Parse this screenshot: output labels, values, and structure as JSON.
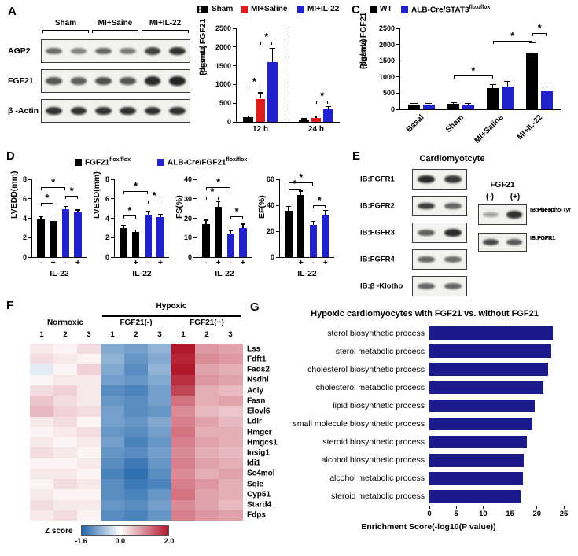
{
  "panels": {
    "A": {
      "label": "A",
      "groups": [
        "Sham",
        "MI+Saine",
        "MI+IL-22"
      ],
      "rows": [
        {
          "label": "AGP2",
          "bands": [
            0.45,
            0.3,
            0.5,
            0.35,
            0.75,
            0.85
          ]
        },
        {
          "label": "FGF21",
          "bands": [
            0.6,
            0.55,
            0.65,
            0.6,
            0.9,
            0.95
          ]
        },
        {
          "label": "β -Actin",
          "bands": [
            0.85,
            0.85,
            0.85,
            0.85,
            0.85,
            0.85
          ]
        }
      ]
    },
    "B": {
      "label": "B",
      "legend": [
        {
          "label": "Sham",
          "sup": "",
          "color": "#000000"
        },
        {
          "label": "MI+Saline",
          "sup": "",
          "color": "#e01b1d"
        },
        {
          "label": "MI+IL-22",
          "sup": "",
          "color": "#2222cc"
        }
      ],
      "ylabel1": "Plasma FGF21",
      "ylabel2": "(pg/mL)"
    },
    "C": {
      "label": "C",
      "legend": [
        {
          "label": "WT",
          "sup": "",
          "color": "#000000"
        },
        {
          "label": "ALB-Cre/STAT3",
          "sup": "flox/flox",
          "color": "#2222cc"
        }
      ],
      "ylabel1": "Plasma FGF21",
      "ylabel2": "(pg/mL)"
    },
    "D": {
      "label": "D",
      "legend": [
        {
          "label": "FGF21",
          "sup": "flox/flox",
          "color": "#000000"
        },
        {
          "label": "ALB-Cre/FGF21",
          "sup": "flox/flox",
          "color": "#2222cc"
        }
      ]
    },
    "E": {
      "label": "E",
      "title": "Cardiomyotcyte",
      "blots": [
        {
          "label": "IB:FGFR1",
          "bands": [
            0.9,
            0.8
          ]
        },
        {
          "label": "IB:FGFR2",
          "bands": [
            0.75,
            0.5
          ]
        },
        {
          "label": "IB:FGFR3",
          "bands": [
            0.55,
            0.9
          ]
        },
        {
          "label": "IB:FGFR4",
          "bands": [
            0.5,
            0.45
          ]
        },
        {
          "label": "IB:β -Klotho",
          "bands": [
            0.5,
            0.5
          ]
        }
      ],
      "right": {
        "header": "FGF21",
        "lanes": [
          "(-)",
          "(+)"
        ],
        "blots": [
          {
            "labels": [
              "IP:FGFR1",
              "IB:Phospho-Tyr"
            ],
            "bands": [
              0.12,
              0.85
            ]
          },
          {
            "labels": [
              "IP:FGFR1",
              "IB:FGFR1"
            ],
            "bands": [
              0.7,
              0.6
            ]
          }
        ]
      }
    },
    "F": {
      "label": "F"
    },
    "G": {
      "label": "G"
    }
  },
  "chart_data": {
    "B": {
      "type": "bar",
      "ylabel": "Plasma FGF21 (pg/mL)",
      "ylim": [
        0,
        2500
      ],
      "yticks": [
        0,
        500,
        1000,
        1500,
        2000,
        2500
      ],
      "series": [
        "Sham",
        "MI+Saline",
        "MI+IL-22"
      ],
      "colors": [
        "#000000",
        "#e01b1d",
        "#2222cc"
      ],
      "groups": [
        {
          "label": "12 h",
          "values": [
            120,
            620,
            1600
          ],
          "errs": [
            40,
            160,
            360
          ]
        },
        {
          "label": "24 h",
          "values": [
            60,
            110,
            340
          ],
          "errs": [
            25,
            45,
            70
          ]
        }
      ],
      "gap": 1.6,
      "divider_center": true,
      "brackets": [
        {
          "a": 0,
          "b": 1,
          "y": 950,
          "label": "*"
        },
        {
          "a": 1,
          "b": 2,
          "y": 2150,
          "label": "*"
        },
        {
          "a": 4,
          "b": 5,
          "y": 560,
          "label": "*"
        }
      ]
    },
    "C": {
      "type": "bar",
      "ylabel": "Plasma FGF21 (pg/mL)",
      "ylim": [
        0,
        2500
      ],
      "yticks": [
        0,
        500,
        1000,
        1500,
        2000,
        2500
      ],
      "series": [
        "WT",
        "ALB-Cre/STAT3flox/flox"
      ],
      "colors": [
        "#000000",
        "#2222cc"
      ],
      "groups": [
        {
          "label": "Basal",
          "values": [
            150,
            140
          ],
          "errs": [
            40,
            40
          ]
        },
        {
          "label": "Sham",
          "values": [
            160,
            150
          ],
          "errs": [
            45,
            40
          ]
        },
        {
          "label": "MI+Saline",
          "values": [
            650,
            700
          ],
          "errs": [
            120,
            160
          ]
        },
        {
          "label": "MI+IL-22",
          "values": [
            1750,
            560
          ],
          "errs": [
            300,
            130
          ]
        }
      ],
      "gap": 0.7,
      "rotate_xlabels": true,
      "brackets": [
        {
          "a": 2,
          "b": 4,
          "y": 1050,
          "label": "*"
        },
        {
          "a": 4,
          "b": 6,
          "y": 2100,
          "label": "*"
        },
        {
          "a": 6,
          "b": 7,
          "y": 2350,
          "label": "*"
        }
      ]
    },
    "D": [
      {
        "type": "bar",
        "ylabel": "LVEDD(mm)",
        "ylim": [
          0,
          8
        ],
        "yticks": [
          0,
          2,
          4,
          6,
          8
        ],
        "groups": [
          {
            "values": [
              3.9
            ],
            "errs": [
              0.25
            ]
          },
          {
            "values": [
              3.7
            ],
            "errs": [
              0.2
            ]
          },
          {
            "values": [
              4.9
            ],
            "errs": [
              0.3
            ]
          },
          {
            "values": [
              4.6
            ],
            "errs": [
              0.25
            ]
          }
        ],
        "gap": 0.35,
        "bar_colors": [
          "#000000",
          "#000000",
          "#2222cc",
          "#2222cc"
        ],
        "bar_labels": [
          "-",
          "+",
          "-",
          "+"
        ],
        "xaxis_title": "IL-22",
        "brackets": [
          {
            "a": 0,
            "b": 1,
            "y": 5.6,
            "label": "*"
          },
          {
            "a": 0,
            "b": 2,
            "y": 7.2,
            "label": "*"
          },
          {
            "a": 2,
            "b": 3,
            "y": 6.3,
            "label": "*"
          }
        ]
      },
      {
        "type": "bar",
        "ylabel": "LVESD(mm)",
        "ylim": [
          0,
          8
        ],
        "yticks": [
          0,
          2,
          4,
          6,
          8
        ],
        "groups": [
          {
            "values": [
              3.0
            ],
            "errs": [
              0.25
            ]
          },
          {
            "values": [
              2.6
            ],
            "errs": [
              0.2
            ]
          },
          {
            "values": [
              4.4
            ],
            "errs": [
              0.3
            ]
          },
          {
            "values": [
              4.1
            ],
            "errs": [
              0.28
            ]
          }
        ],
        "gap": 0.35,
        "bar_colors": [
          "#000000",
          "#000000",
          "#2222cc",
          "#2222cc"
        ],
        "bar_labels": [
          "-",
          "+",
          "-",
          "+"
        ],
        "xaxis_title": "IL-22",
        "brackets": [
          {
            "a": 0,
            "b": 1,
            "y": 4.3,
            "label": "*"
          },
          {
            "a": 0,
            "b": 2,
            "y": 6.8,
            "label": "*"
          },
          {
            "a": 2,
            "b": 3,
            "y": 5.8,
            "label": "*"
          }
        ]
      },
      {
        "type": "bar",
        "ylabel": "FS(%)",
        "ylim": [
          0,
          40
        ],
        "yticks": [
          0,
          10,
          20,
          30,
          40
        ],
        "groups": [
          {
            "values": [
              17
            ],
            "errs": [
              2
            ]
          },
          {
            "values": [
              26
            ],
            "errs": [
              2.5
            ]
          },
          {
            "values": [
              12
            ],
            "errs": [
              1.5
            ]
          },
          {
            "values": [
              15
            ],
            "errs": [
              2
            ]
          }
        ],
        "gap": 0.35,
        "bar_colors": [
          "#000000",
          "#000000",
          "#2222cc",
          "#2222cc"
        ],
        "bar_labels": [
          "-",
          "+",
          "-",
          "+"
        ],
        "xaxis_title": "IL-22",
        "brackets": [
          {
            "a": 0,
            "b": 1,
            "y": 31,
            "label": "*"
          },
          {
            "a": 0,
            "b": 2,
            "y": 36,
            "label": "*"
          },
          {
            "a": 2,
            "b": 3,
            "y": 21,
            "label": "*"
          }
        ]
      },
      {
        "type": "bar",
        "ylabel": "EF(%)",
        "ylim": [
          0,
          60
        ],
        "yticks": [
          0,
          20,
          40,
          60
        ],
        "groups": [
          {
            "values": [
              36
            ],
            "errs": [
              3
            ]
          },
          {
            "values": [
              48
            ],
            "errs": [
              3
            ]
          },
          {
            "values": [
              25
            ],
            "errs": [
              2.5
            ]
          },
          {
            "values": [
              33
            ],
            "errs": [
              3
            ]
          }
        ],
        "gap": 0.35,
        "bar_colors": [
          "#000000",
          "#000000",
          "#2222cc",
          "#2222cc"
        ],
        "bar_labels": [
          "-",
          "+",
          "-",
          "+"
        ],
        "xaxis_title": "IL-22",
        "brackets": [
          {
            "a": 0,
            "b": 1,
            "y": 53,
            "label": "*"
          },
          {
            "a": 0,
            "b": 2,
            "y": 57.5,
            "label": "*"
          },
          {
            "a": 2,
            "b": 3,
            "y": 40,
            "label": "*"
          }
        ]
      }
    ],
    "F": {
      "type": "heatmap",
      "condition_header": "Hypoxic",
      "col_groups": [
        {
          "label": "Normoxic",
          "cols": [
            "1",
            "2",
            "3"
          ]
        },
        {
          "label": "FGF21(-)",
          "cols": [
            "1",
            "2",
            "3"
          ]
        },
        {
          "label": "FGF21(+)",
          "cols": [
            "1",
            "2",
            "3"
          ]
        }
      ],
      "genes": [
        "Lss",
        "Fdft1",
        "Fads2",
        "Nsdhl",
        "Acly",
        "Fasn",
        "Elovl6",
        "Ldlr",
        "Hmgcr",
        "Hmgcs1",
        "Insig1",
        "Idi1",
        "Sc4mol",
        "Sqle",
        "Cyp51",
        "Stard4",
        "Fdps"
      ],
      "values": [
        [
          0.2,
          0.1,
          0.3,
          -0.9,
          -1.0,
          -0.8,
          2.0,
          0.9,
          0.8
        ],
        [
          0.3,
          0.2,
          0.1,
          -0.8,
          -1.1,
          -0.9,
          1.9,
          1.0,
          0.9
        ],
        [
          -0.2,
          0.1,
          0.4,
          -0.9,
          -1.2,
          -0.8,
          2.0,
          0.8,
          0.7
        ],
        [
          0.1,
          0.2,
          0.2,
          -1.0,
          -1.1,
          -0.9,
          1.8,
          0.9,
          0.8
        ],
        [
          0.3,
          0.4,
          0.2,
          -1.2,
          -1.3,
          -1.0,
          1.6,
          0.7,
          0.6
        ],
        [
          0.5,
          0.3,
          0.2,
          -1.1,
          -1.2,
          -1.0,
          1.2,
          0.7,
          0.8
        ],
        [
          0.6,
          0.4,
          0.3,
          -1.0,
          -1.2,
          -1.1,
          1.0,
          0.6,
          0.5
        ],
        [
          0.2,
          0.3,
          0.1,
          -1.0,
          -1.1,
          -0.9,
          1.1,
          0.8,
          0.6
        ],
        [
          0.1,
          0.2,
          0.3,
          -1.1,
          -1.2,
          -1.0,
          1.2,
          0.7,
          0.7
        ],
        [
          0.2,
          0.1,
          0.2,
          -1.0,
          -1.3,
          -1.1,
          1.1,
          0.8,
          0.7
        ],
        [
          0.3,
          0.2,
          0.1,
          -1.1,
          -1.2,
          -1.0,
          1.0,
          0.7,
          0.6
        ],
        [
          0.1,
          0.1,
          0.2,
          -1.2,
          -1.4,
          -1.1,
          1.1,
          0.8,
          0.7
        ],
        [
          0.2,
          0.2,
          0.1,
          -1.3,
          -1.5,
          -1.2,
          1.0,
          0.7,
          0.8
        ],
        [
          0.1,
          0.3,
          0.2,
          -1.2,
          -1.4,
          -1.3,
          1.1,
          0.9,
          0.7
        ],
        [
          0.2,
          0.1,
          0.1,
          -1.2,
          -1.3,
          -1.1,
          1.2,
          0.8,
          0.7
        ],
        [
          0.3,
          0.2,
          0.2,
          -1.1,
          -1.2,
          -1.0,
          1.0,
          0.8,
          0.6
        ],
        [
          0.2,
          0.3,
          0.1,
          -1.2,
          -1.3,
          -1.1,
          1.1,
          0.9,
          0.8
        ]
      ],
      "scale": {
        "min": -1.6,
        "mid": 0.0,
        "max": 2.0,
        "min_color": "#2166ac",
        "mid_color": "#ffffff",
        "max_color": "#b2182b"
      },
      "legend_label": "Z score",
      "legend_ticks": [
        "-1.6",
        "0.0",
        "2.0"
      ]
    },
    "G": {
      "type": "bar-horizontal",
      "title": "Hypoxic cardiomyocytes with FGF21 vs. without FGF21",
      "xlabel": "Enrichment Score(-log10(P value))",
      "xlim": [
        0,
        25
      ],
      "xticks": [
        0,
        5,
        10,
        15,
        20,
        25
      ],
      "color": "#1a1a8c",
      "categories": [
        "sterol biosynthetic process",
        "sterol metabolic process",
        "cholesterol biosynthetic process",
        "cholesterol metabolic process",
        "lipid biosynthetic process",
        "small molecule biosynthetic process",
        "steroid biosynthetic process",
        "alcohol biosynthetic process",
        "alcohol metabolic process",
        "steroid metabolic process"
      ],
      "values": [
        23,
        22.6,
        22.1,
        21.2,
        19.6,
        19.1,
        18.2,
        17.6,
        17.4,
        17.0
      ]
    }
  }
}
